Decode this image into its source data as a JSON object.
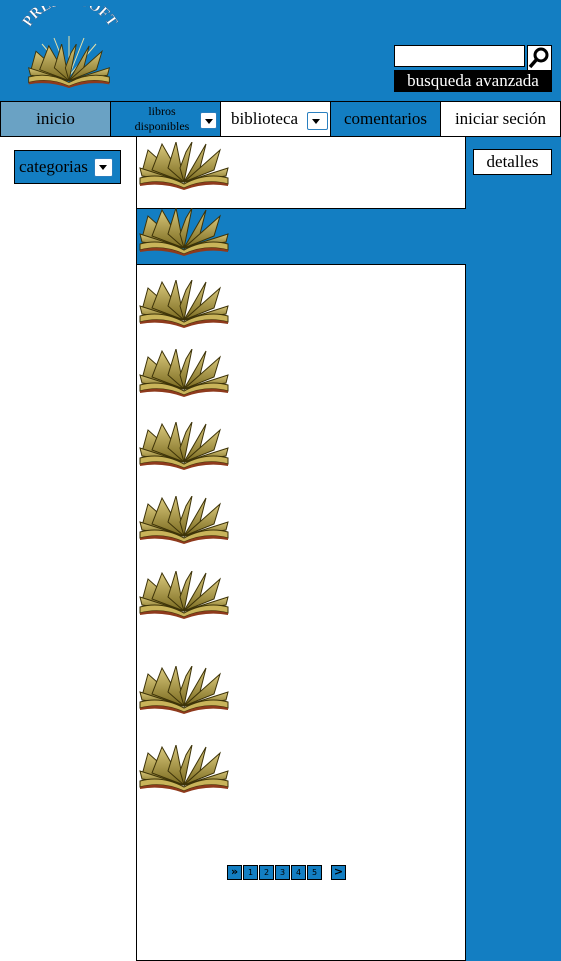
{
  "brand": {
    "name": "PRESTASOFT"
  },
  "search": {
    "value": "",
    "placeholder": "",
    "advanced_label": "busqueda avanzada"
  },
  "nav": {
    "inicio": "inicio",
    "libros_line1": "libros",
    "libros_line2": "disponibles",
    "biblioteca": "biblioteca",
    "comentarios": "comentarios",
    "login": "iniciar seción"
  },
  "sidebar": {
    "categories_label": "categorias"
  },
  "details": {
    "label": "detalles"
  },
  "list": {
    "selected_index": 1,
    "item_count": 9
  },
  "pager": {
    "first": "»",
    "pages": [
      "1",
      "2",
      "3",
      "4",
      "5"
    ],
    "next": ">"
  },
  "colors": {
    "primary": "#137ec2",
    "nav_active": "#6aa2c4",
    "text": "#000000"
  }
}
